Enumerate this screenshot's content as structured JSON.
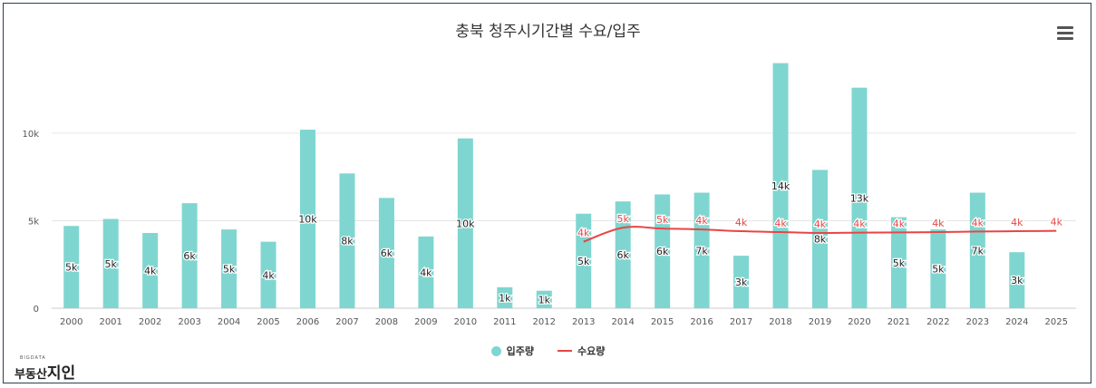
{
  "chart_data": {
    "type": "bar",
    "title": "충북 청주시기간별 수요/입주",
    "categories": [
      "2000",
      "2001",
      "2002",
      "2003",
      "2004",
      "2005",
      "2006",
      "2007",
      "2008",
      "2009",
      "2010",
      "2011",
      "2012",
      "2013",
      "2014",
      "2015",
      "2016",
      "2017",
      "2018",
      "2019",
      "2020",
      "2021",
      "2022",
      "2023",
      "2024",
      "2025"
    ],
    "y_ticks": [
      "0",
      "5k",
      "10k"
    ],
    "ylim": [
      0,
      14500
    ],
    "series": [
      {
        "name": "입주량",
        "type": "bar",
        "color": "#7fd6d0",
        "values": [
          4700,
          5100,
          4300,
          6000,
          4500,
          3800,
          10200,
          7700,
          6300,
          4100,
          9700,
          1200,
          1000,
          5400,
          6100,
          6500,
          6600,
          3000,
          14000,
          7900,
          12600,
          5200,
          4500,
          6600,
          3200,
          null
        ],
        "labels": [
          "5k",
          "5k",
          "4k",
          "6k",
          "5k",
          "4k",
          "10k",
          "8k",
          "6k",
          "4k",
          "10k",
          "1k",
          "1k",
          "5k",
          "6k",
          "6k",
          "7k",
          "3k",
          "14k",
          "8k",
          "13k",
          "5k",
          "5k",
          "7k",
          "3k",
          ""
        ]
      },
      {
        "name": "수요량",
        "type": "line",
        "color": "#e84545",
        "values": [
          null,
          null,
          null,
          null,
          null,
          null,
          null,
          null,
          null,
          null,
          null,
          null,
          null,
          3800,
          4600,
          4550,
          4500,
          4400,
          4350,
          4300,
          4320,
          4330,
          4350,
          4380,
          4400,
          4420
        ],
        "labels": [
          "",
          "",
          "",
          "",
          "",
          "",
          "",
          "",
          "",
          "",
          "",
          "",
          "",
          "4k",
          "5k",
          "5k",
          "4k",
          "4k",
          "4k",
          "4k",
          "4k",
          "4k",
          "4k",
          "4k",
          "4k",
          "4k"
        ]
      }
    ],
    "legend": "bottom-center",
    "grid": true
  },
  "legend_items": [
    {
      "label": "입주량"
    },
    {
      "label": "수요량"
    }
  ],
  "logo": {
    "small": "BIGDATA",
    "main_a": "부동산",
    "main_b": "지인"
  }
}
